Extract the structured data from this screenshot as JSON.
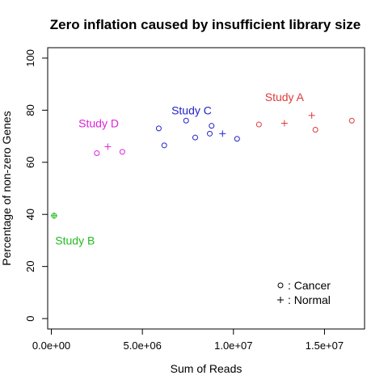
{
  "chart_data": {
    "type": "scatter",
    "title": "Zero inflation caused by insufficient library size",
    "xlabel": "Sum of Reads",
    "ylabel": "Percentage of non-zero Genes",
    "xlim": [
      -200000,
      17200000
    ],
    "ylim": [
      -4,
      104
    ],
    "x_ticks": [
      {
        "value": 0,
        "label": "0.0e+00"
      },
      {
        "value": 5000000,
        "label": "5.0e+06"
      },
      {
        "value": 10000000,
        "label": "1.0e+07"
      },
      {
        "value": 15000000,
        "label": "1.5e+07"
      }
    ],
    "y_ticks": [
      {
        "value": 0,
        "label": "0"
      },
      {
        "value": 20,
        "label": "20"
      },
      {
        "value": 40,
        "label": "40"
      },
      {
        "value": 60,
        "label": "60"
      },
      {
        "value": 80,
        "label": "80"
      },
      {
        "value": 100,
        "label": "100"
      }
    ],
    "grid": false,
    "groups": [
      {
        "name": "Study A",
        "color": "#DF3A3A",
        "label_at": [
          12800000,
          85
        ],
        "cancer": [
          [
            11400000,
            74.5
          ],
          [
            14500000,
            72.5
          ],
          [
            16500000,
            76
          ]
        ],
        "normal": [
          [
            12800000,
            75
          ],
          [
            14300000,
            78
          ]
        ]
      },
      {
        "name": "Study B",
        "color": "#22BB22",
        "label_at": [
          1300000,
          30
        ],
        "cancer": [
          [
            150000,
            39.5
          ]
        ],
        "normal": [
          [
            150000,
            39.5
          ]
        ]
      },
      {
        "name": "Study C",
        "color": "#2222CC",
        "label_at": [
          7700000,
          80
        ],
        "cancer": [
          [
            5900000,
            73
          ],
          [
            6200000,
            66.5
          ],
          [
            7400000,
            76
          ],
          [
            7900000,
            69.5
          ],
          [
            8700000,
            71
          ],
          [
            8800000,
            74
          ],
          [
            10200000,
            69
          ]
        ],
        "normal": [
          [
            9400000,
            71
          ]
        ]
      },
      {
        "name": "Study D",
        "color": "#DD22DD",
        "label_at": [
          2600000,
          75
        ],
        "cancer": [
          [
            2500000,
            63.5
          ],
          [
            3900000,
            64
          ]
        ],
        "normal": [
          [
            3100000,
            66
          ]
        ]
      }
    ],
    "legend": {
      "position": "bottom-right",
      "entries": [
        {
          "symbol": "o",
          "label": ": Cancer"
        },
        {
          "symbol": "+",
          "label": ": Normal"
        }
      ]
    }
  }
}
